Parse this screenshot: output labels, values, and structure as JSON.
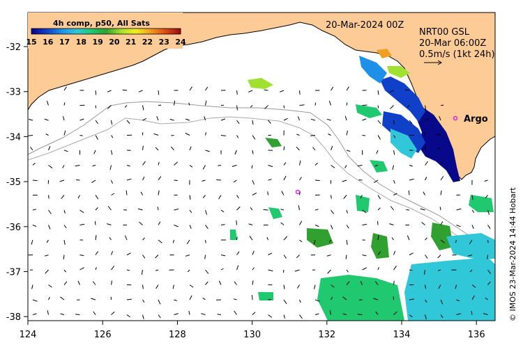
{
  "colorbar": {
    "title": "4h comp, p50, All Sats",
    "ticks": [
      "15",
      "16",
      "17",
      "18",
      "19",
      "20",
      "21",
      "22",
      "23",
      "24"
    ]
  },
  "header": {
    "date": "20-Mar-2024 00Z"
  },
  "current_info": {
    "line1": "NRT00 GSL",
    "line2": "20-Mar 06:00Z",
    "line3": "0.5m/s (1kt 24h)"
  },
  "argo_label": "Argo",
  "credit": "© IMOS 23-Mar-2024 14:44 Hobart",
  "axes": {
    "x_ticks": [
      "124",
      "126",
      "128",
      "130",
      "132",
      "134",
      "136"
    ],
    "y_ticks": [
      "-32",
      "-33",
      "-34",
      "-35",
      "-36",
      "-37",
      "-38"
    ]
  },
  "colors": {
    "land": "#fccb96",
    "sst_scale": [
      "#08088a",
      "#1040c8",
      "#1e90e8",
      "#30c8d8",
      "#20c870",
      "#30a030",
      "#a0e030",
      "#f0f020",
      "#f0a020",
      "#e05010",
      "#a01010"
    ]
  }
}
